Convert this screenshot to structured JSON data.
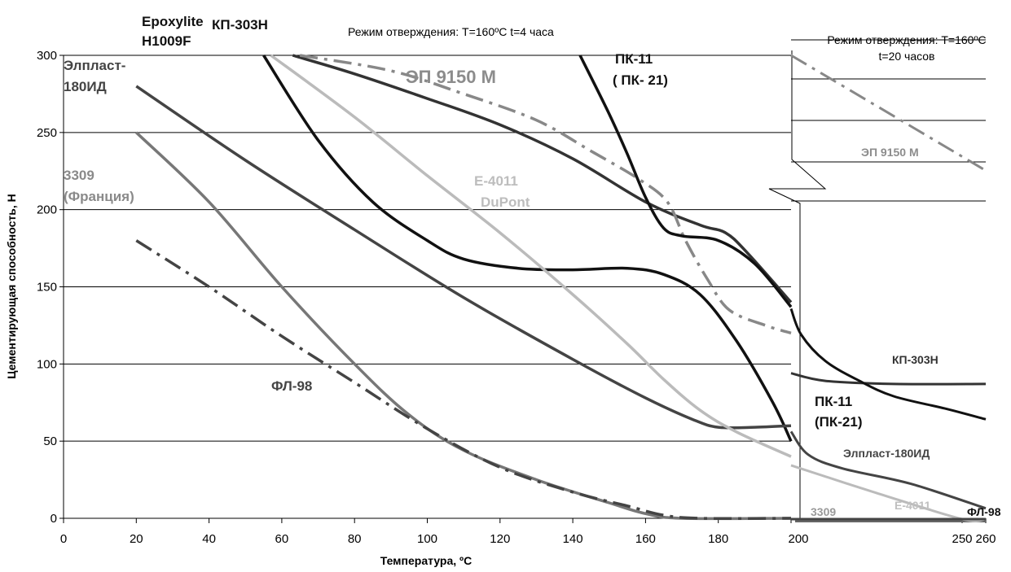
{
  "chart_data": {
    "type": "line",
    "ylabel": "Цементирующая способность, Н",
    "xlabel": "Температура, ºС",
    "grid": true,
    "left_panel": {
      "title": "Режим отверждения: T=160ºC t=4 часа",
      "xlim": [
        0,
        200
      ],
      "ylim": [
        0,
        300
      ],
      "x_ticks": [
        0,
        20,
        40,
        60,
        80,
        100,
        120,
        140,
        160,
        180,
        200
      ],
      "y_ticks": [
        0,
        50,
        100,
        150,
        200,
        250,
        300
      ],
      "series": [
        {
          "name": "Epoxylite H1009F",
          "color": "#111111",
          "style": "solid",
          "points": [
            [
              55,
              300
            ],
            [
              70,
              245
            ],
            [
              85,
              205
            ],
            [
              100,
              180
            ],
            [
              110,
              168
            ],
            [
              125,
              162
            ],
            [
              140,
              161
            ],
            [
              155,
              162
            ],
            [
              165,
              158
            ],
            [
              175,
              145
            ],
            [
              185,
              115
            ],
            [
              195,
              75
            ],
            [
              200,
              50
            ]
          ]
        },
        {
          "name": "КП-303Н",
          "color": "#333333",
          "style": "solid",
          "points": [
            [
              63,
              300
            ],
            [
              80,
              288
            ],
            [
              100,
              272
            ],
            [
              120,
              255
            ],
            [
              140,
              233
            ],
            [
              160,
              205
            ],
            [
              175,
              190
            ],
            [
              182,
              185
            ],
            [
              188,
              172
            ],
            [
              200,
              140
            ]
          ]
        },
        {
          "name": "ЭП 9150 М",
          "color": "#888888",
          "style": "dashdot",
          "points": [
            [
              65,
              300
            ],
            [
              90,
              290
            ],
            [
              110,
              275
            ],
            [
              130,
              258
            ],
            [
              145,
              238
            ],
            [
              158,
              220
            ],
            [
              166,
              205
            ],
            [
              171,
              180
            ],
            [
              177,
              155
            ],
            [
              183,
              135
            ],
            [
              193,
              125
            ],
            [
              200,
              120
            ]
          ]
        },
        {
          "name": "ПК-11 ( ПК- 21)",
          "color": "#111111",
          "style": "solid",
          "points": [
            [
              142,
              300
            ],
            [
              150,
              262
            ],
            [
              155,
              236
            ],
            [
              160,
              208
            ],
            [
              165,
              188
            ],
            [
              170,
              183
            ],
            [
              180,
              180
            ],
            [
              190,
              165
            ],
            [
              200,
              137
            ]
          ]
        },
        {
          "name": "Элпласт-180ИД",
          "color": "#444444",
          "style": "solid",
          "points": [
            [
              20,
              280
            ],
            [
              50,
              232
            ],
            [
              80,
              187
            ],
            [
              110,
              143
            ],
            [
              140,
              103
            ],
            [
              160,
              78
            ],
            [
              173,
              64
            ],
            [
              180,
              59
            ],
            [
              190,
              59
            ],
            [
              200,
              60
            ]
          ]
        },
        {
          "name": "E-4011 DuPont",
          "color": "#bbbbbb",
          "style": "solid",
          "points": [
            [
              57,
              300
            ],
            [
              80,
              260
            ],
            [
              100,
              222
            ],
            [
              120,
              185
            ],
            [
              140,
              145
            ],
            [
              155,
              113
            ],
            [
              165,
              90
            ],
            [
              175,
              70
            ],
            [
              185,
              56
            ],
            [
              200,
              40
            ]
          ]
        },
        {
          "name": "3309 (Франция)",
          "color": "#777777",
          "style": "solid",
          "points": [
            [
              20,
              250
            ],
            [
              40,
              205
            ],
            [
              60,
              150
            ],
            [
              80,
              100
            ],
            [
              95,
              67
            ],
            [
              110,
              44
            ],
            [
              130,
              25
            ],
            [
              150,
              10
            ],
            [
              160,
              3
            ],
            [
              170,
              0
            ],
            [
              200,
              0
            ]
          ]
        },
        {
          "name": "ФЛ-98",
          "color": "#444444",
          "style": "dashdot",
          "points": [
            [
              20,
              180
            ],
            [
              40,
              150
            ],
            [
              60,
              118
            ],
            [
              80,
              88
            ],
            [
              100,
              58
            ],
            [
              120,
              33
            ],
            [
              140,
              17
            ],
            [
              155,
              8
            ],
            [
              165,
              2
            ],
            [
              175,
              0
            ],
            [
              200,
              0
            ]
          ]
        }
      ]
    },
    "right_panel": {
      "title_line1": "Режим отверждения: T=160ºC",
      "title_line2": "t=20 часов",
      "x_ticks": [
        200,
        250,
        260
      ],
      "series": [
        {
          "name": "ЭП 9150 М",
          "color": "#888888",
          "style": "dashdot",
          "points": [
            [
              200,
              302
            ],
            [
              260,
              227
            ]
          ]
        },
        {
          "name": "КП-303Н",
          "color": "#333333",
          "style": "solid",
          "points": [
            [
              200,
              95
            ],
            [
              210,
              90
            ],
            [
              230,
              88
            ],
            [
              260,
              88
            ]
          ]
        },
        {
          "name": "ПК-11 (ПК-21)",
          "color": "#111111",
          "style": "solid",
          "points": [
            [
              200,
              137
            ],
            [
              203,
              120
            ],
            [
              210,
              103
            ],
            [
              220,
              90
            ],
            [
              230,
              80
            ],
            [
              245,
              72
            ],
            [
              260,
              65
            ]
          ]
        },
        {
          "name": "Элпласт-180ИД",
          "color": "#444444",
          "style": "solid",
          "points": [
            [
              200,
              57
            ],
            [
              205,
              42
            ],
            [
              215,
              33
            ],
            [
              235,
              23
            ],
            [
              260,
              7
            ]
          ]
        },
        {
          "name": "E-4011",
          "color": "#bbbbbb",
          "style": "solid",
          "points": [
            [
              200,
              35
            ],
            [
              225,
              17
            ],
            [
              250,
              0
            ],
            [
              260,
              0
            ]
          ]
        },
        {
          "name": "ФЛ-98",
          "color": "#444444",
          "style": "solid",
          "points": [
            [
              200,
              0
            ],
            [
              260,
              0
            ]
          ]
        }
      ]
    },
    "labels": {
      "epoxylite_1": "Epoxylite",
      "epoxylite_2": "H1009F",
      "kp303": "КП-303Н",
      "pk11_1": "ПК-11",
      "pk11_2": "( ПК- 21)",
      "ep9150": "ЭП 9150 М",
      "elplast_1": "Элпласт-",
      "elplast_2": "180ИД",
      "s3309_1": "3309",
      "s3309_2": "(Франция)",
      "e4011_1": "E-4011",
      "e4011_2": "DuPont",
      "fl98": "ФЛ-98",
      "r_ep9150": "ЭП 9150 М",
      "r_kp303": "КП-303Н",
      "r_pk11_1": "ПК-11",
      "r_pk11_2": "(ПК-21)",
      "r_elplast": "Элпласт-180ИД",
      "r_3309": "3309",
      "r_e4011": "E-4011",
      "r_fl98": "ФЛ-98"
    }
  }
}
